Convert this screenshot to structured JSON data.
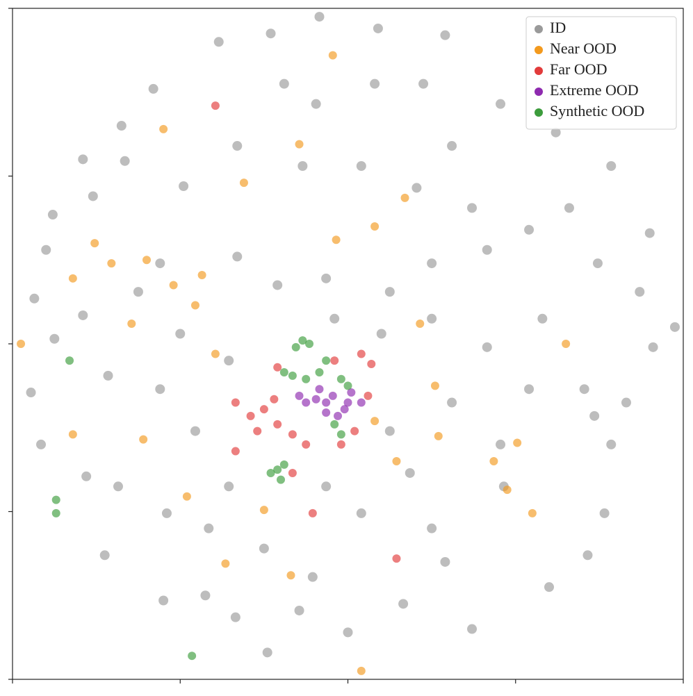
{
  "chart_data": {
    "type": "scatter",
    "xlim": [
      0,
      4
    ],
    "xticks": [
      0,
      1,
      2,
      3,
      4
    ],
    "ylim": [
      0,
      4
    ],
    "yticks": [
      0,
      1,
      2,
      3,
      4
    ],
    "legend": "upper right",
    "series": [
      {
        "name": "ID",
        "color": "#9a9a9a",
        "x": [
          1.83,
          1.23,
          1.54,
          2.18,
          2.58,
          0.84,
          0.65,
          0.42,
          0.67,
          1.02,
          0.48,
          0.24,
          0.2,
          0.13,
          0.42,
          0.25,
          0.57,
          0.11,
          0.17,
          0.44,
          0.63,
          0.55,
          0.9,
          1.15,
          1.52,
          2.0,
          2.33,
          2.74,
          3.2,
          3.43,
          2.58,
          2.5,
          2.93,
          3.53,
          3.47,
          3.41,
          3.57,
          3.66,
          3.82,
          3.95,
          3.74,
          3.49,
          3.32,
          3.57,
          3.8,
          3.24,
          2.91,
          2.62,
          2.45,
          2.16,
          1.81,
          1.62,
          1.34,
          1.73,
          2.08,
          2.41,
          2.74,
          3.08,
          2.83,
          2.5,
          2.25,
          1.87,
          1.58,
          1.34,
          0.88,
          0.75,
          1.0,
          1.29,
          0.88,
          1.09,
          1.29,
          0.92,
          1.17,
          1.5,
          1.79,
          2.08,
          2.37,
          2.25,
          2.62,
          2.83,
          3.16,
          2.5,
          2.2,
          1.92,
          2.91,
          3.08,
          1.87,
          1.71,
          1.33
        ],
        "y": [
          3.95,
          3.8,
          3.85,
          3.88,
          3.84,
          3.52,
          3.3,
          3.1,
          3.09,
          2.94,
          2.88,
          2.77,
          2.56,
          2.27,
          2.17,
          2.03,
          1.81,
          1.71,
          1.4,
          1.21,
          1.15,
          0.74,
          0.47,
          0.5,
          0.16,
          0.28,
          0.45,
          0.3,
          0.55,
          0.74,
          0.7,
          0.9,
          1.15,
          0.99,
          1.57,
          1.73,
          1.4,
          1.65,
          1.98,
          2.1,
          2.31,
          2.48,
          2.81,
          3.06,
          2.66,
          3.26,
          3.43,
          3.18,
          3.55,
          3.55,
          3.43,
          3.55,
          3.18,
          3.06,
          3.06,
          2.93,
          2.81,
          2.68,
          2.56,
          2.48,
          2.31,
          2.39,
          2.35,
          2.52,
          2.48,
          2.31,
          2.06,
          1.9,
          1.73,
          1.48,
          1.15,
          0.99,
          0.9,
          0.78,
          0.61,
          0.99,
          1.23,
          1.48,
          1.65,
          1.98,
          2.15,
          2.15,
          2.06,
          2.15,
          1.4,
          1.73,
          1.15,
          0.41,
          0.37
        ]
      },
      {
        "name": "Near OOD",
        "color": "#f39a1e",
        "x": [
          1.91,
          0.9,
          1.71,
          1.38,
          2.34,
          1.93,
          2.16,
          0.49,
          0.59,
          0.8,
          0.36,
          0.96,
          1.13,
          1.09,
          0.71,
          0.05,
          1.21,
          2.43,
          3.3,
          2.52,
          2.16,
          2.54,
          3.01,
          2.87,
          2.95,
          0.78,
          0.36,
          1.04,
          1.5,
          1.27,
          1.66,
          2.08,
          3.1,
          2.29
        ],
        "y": [
          3.72,
          3.28,
          3.19,
          2.96,
          2.87,
          2.62,
          2.7,
          2.6,
          2.48,
          2.5,
          2.39,
          2.35,
          2.41,
          2.23,
          2.12,
          2.0,
          1.94,
          2.12,
          2.0,
          1.75,
          1.54,
          1.45,
          1.41,
          1.3,
          1.13,
          1.43,
          1.46,
          1.09,
          1.01,
          0.69,
          0.62,
          0.05,
          0.99,
          1.3
        ]
      },
      {
        "name": "Far OOD",
        "color": "#e23b3b",
        "x": [
          1.21,
          1.5,
          1.42,
          1.58,
          1.46,
          1.56,
          1.67,
          1.75,
          1.33,
          1.92,
          2.08,
          2.14,
          2.04,
          1.96,
          1.79,
          1.58,
          1.33,
          2.29,
          1.67,
          2.12
        ],
        "y": [
          3.42,
          1.61,
          1.57,
          1.52,
          1.48,
          1.67,
          1.46,
          1.4,
          1.65,
          1.9,
          1.94,
          1.88,
          1.48,
          1.4,
          0.99,
          1.86,
          1.36,
          0.72,
          1.23,
          1.69
        ]
      },
      {
        "name": "Extreme OOD",
        "color": "#8e2aaf",
        "x": [
          1.87,
          1.91,
          1.98,
          1.81,
          2.02,
          1.75,
          1.94,
          1.83,
          2.0,
          1.87,
          2.08,
          1.71
        ],
        "y": [
          1.65,
          1.69,
          1.61,
          1.67,
          1.71,
          1.65,
          1.57,
          1.73,
          1.65,
          1.59,
          1.65,
          1.69
        ]
      },
      {
        "name": "Synthetic OOD",
        "color": "#3c9c3c",
        "x": [
          1.73,
          1.77,
          1.69,
          1.67,
          1.75,
          1.83,
          1.62,
          1.87,
          1.96,
          2.0,
          1.96,
          1.92,
          1.58,
          1.54,
          1.62,
          1.6,
          0.26,
          0.26,
          1.07,
          0.34
        ],
        "y": [
          2.02,
          2.0,
          1.98,
          1.81,
          1.79,
          1.83,
          1.83,
          1.9,
          1.79,
          1.75,
          1.46,
          1.52,
          1.25,
          1.23,
          1.28,
          1.19,
          1.07,
          0.99,
          0.14,
          1.9
        ]
      }
    ]
  }
}
